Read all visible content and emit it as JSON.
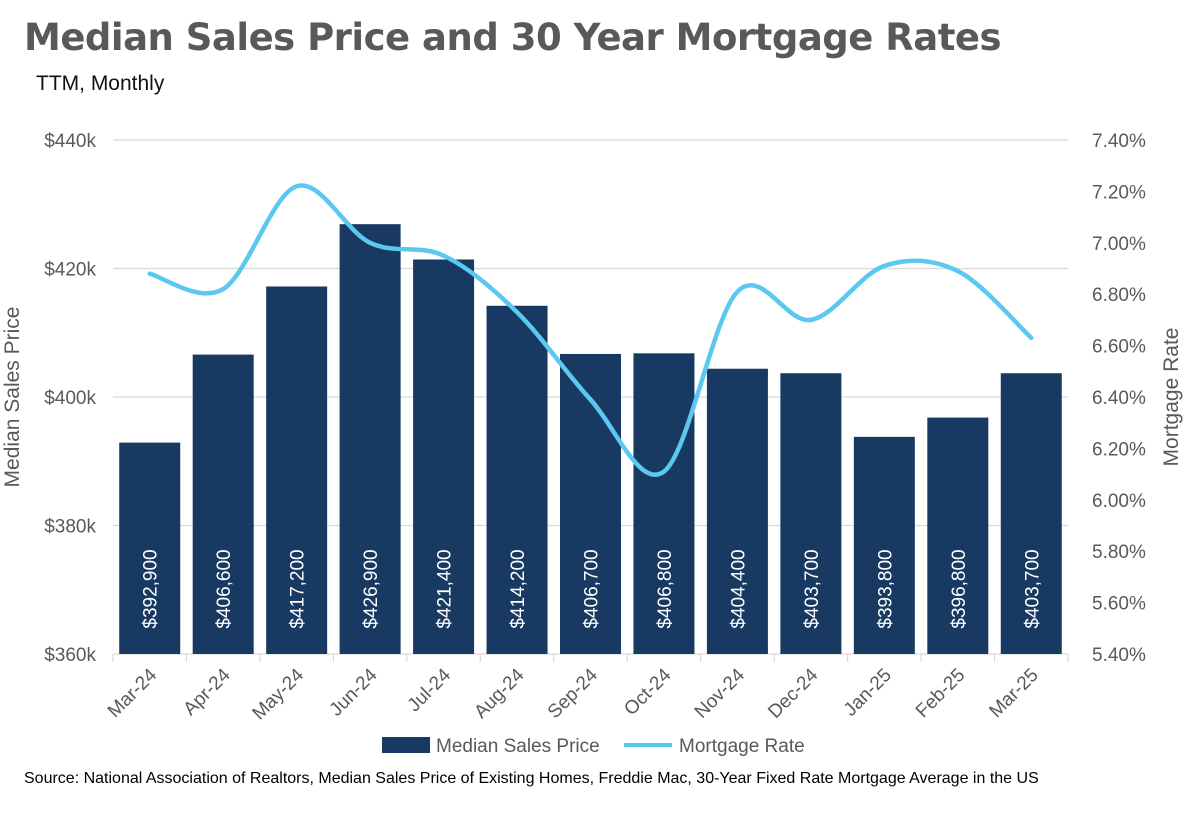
{
  "title": "Median Sales Price and 30 Year Mortgage Rates",
  "subtitle": "TTM, Monthly",
  "source": "Source: National Association of Realtors, Median Sales Price of Existing Homes, Freddie Mac, 30-Year Fixed Rate Mortgage Average in the US",
  "colors": {
    "bar": "#183a62",
    "line": "#5bc8f0",
    "grid": "#d9d9d9",
    "axis_text": "#595959"
  },
  "chart_data": {
    "type": "bar",
    "categories": [
      "Mar-24",
      "Apr-24",
      "May-24",
      "Jun-24",
      "Jul-24",
      "Aug-24",
      "Sep-24",
      "Oct-24",
      "Nov-24",
      "Dec-24",
      "Jan-25",
      "Feb-25",
      "Mar-25"
    ],
    "series": [
      {
        "name": "Median Sales Price",
        "type": "bar",
        "axis": "left",
        "values": [
          392900,
          406600,
          417200,
          426900,
          421400,
          414200,
          406700,
          406800,
          404400,
          403700,
          393800,
          396800,
          403700
        ],
        "labels": [
          "$392,900",
          "$406,600",
          "$417,200",
          "$426,900",
          "$421,400",
          "$414,200",
          "$406,700",
          "$406,800",
          "$404,400",
          "$403,700",
          "$393,800",
          "$396,800",
          "$403,700"
        ]
      },
      {
        "name": "Mortgage Rate",
        "type": "line",
        "axis": "right",
        "values": [
          6.88,
          6.82,
          7.22,
          7.0,
          6.95,
          6.73,
          6.39,
          6.11,
          6.81,
          6.7,
          6.91,
          6.89,
          6.63
        ]
      }
    ],
    "ylabel": "Median Sales Price",
    "y2label": "Mortgage Rate",
    "ylim": [
      360000,
      440000
    ],
    "y2lim": [
      5.4,
      7.4
    ],
    "yticks": [
      "$360k",
      "$380k",
      "$400k",
      "$420k",
      "$440k"
    ],
    "y2ticks": [
      "5.40%",
      "5.60%",
      "5.80%",
      "6.00%",
      "6.20%",
      "6.40%",
      "6.60%",
      "6.80%",
      "7.00%",
      "7.20%",
      "7.40%"
    ],
    "grid": true,
    "legend": "bottom"
  }
}
